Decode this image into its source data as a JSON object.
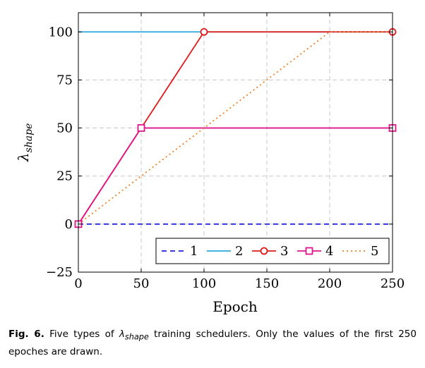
{
  "chart_data": {
    "type": "line",
    "xlabel": "Epoch",
    "ylabel_main": "λ",
    "ylabel_sub": "shape",
    "xlim": [
      0,
      250
    ],
    "ylim": [
      -25,
      110
    ],
    "xticks": [
      0,
      50,
      100,
      150,
      200,
      250
    ],
    "yticks": [
      -25,
      0,
      25,
      50,
      75,
      100
    ],
    "xtick_labels": [
      "0",
      "50",
      "100",
      "150",
      "200",
      "250"
    ],
    "ytick_labels": [
      "−25",
      "0",
      "25",
      "50",
      "75",
      "100"
    ],
    "grid": true,
    "legend_position": "bottom-right",
    "series": [
      {
        "name": "1",
        "color": "#1f1fe0",
        "style": "dashed",
        "marker": "none",
        "x": [
          0,
          250
        ],
        "y": [
          0,
          0
        ]
      },
      {
        "name": "2",
        "color": "#2aa8dc",
        "style": "solid",
        "marker": "none",
        "x": [
          0,
          250
        ],
        "y": [
          100,
          100
        ]
      },
      {
        "name": "3",
        "color": "#e01919",
        "style": "solid",
        "marker": "circle",
        "x": [
          0,
          100,
          250
        ],
        "y": [
          0,
          100,
          100
        ]
      },
      {
        "name": "4",
        "color": "#e0158c",
        "style": "solid",
        "marker": "square",
        "x": [
          0,
          50,
          250
        ],
        "y": [
          0,
          50,
          50
        ]
      },
      {
        "name": "5",
        "color": "#f08020",
        "style": "dotted",
        "marker": "none",
        "x": [
          0,
          200,
          250
        ],
        "y": [
          0,
          100,
          100
        ]
      }
    ]
  },
  "caption": {
    "label": "Fig. 6.",
    "text_before": " Five types of ",
    "lambda": "λ",
    "lambda_sub": "shape",
    "text_after": " training schedulers. Only the values of the first 250 epoches are drawn."
  }
}
